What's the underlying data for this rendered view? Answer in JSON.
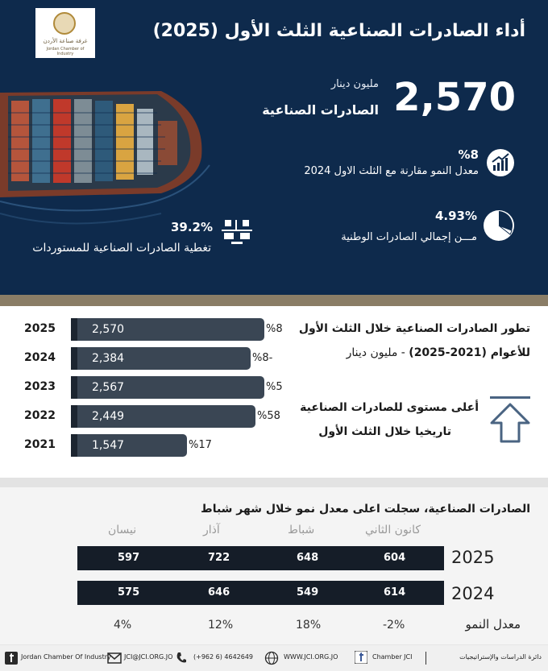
{
  "header": {
    "logo_text_ar": "غرفة صناعة الأردن",
    "logo_text_en": "Jordan Chamber of Industry",
    "title": "أداء الصادرات الصناعية الثلث الأول (2025)",
    "big_value": "2,570",
    "big_unit": "مليون دينار",
    "big_label": "الصادرات الصناعية",
    "growth_value": "%8",
    "growth_label": "معدل النمو مقارنة مع الثلث الاول 2024",
    "share_value": "93%.4",
    "share_label": "مـــن إجمالي الصادرات الوطنية",
    "coverage_value": "39.2%",
    "coverage_label": "تغطية الصادرات الصناعية للمستوردات"
  },
  "trend": {
    "title_line1": "تطور الصادرات الصناعية خلال الثلث الأول",
    "title_line2_bold": "للأعوام (2021-2025)",
    "title_line2_rest": " - مليون دينار",
    "note_line1": "أعلى مستوى للصادرات الصناعية",
    "note_line2": "تاريخيا خلال الثلث الأول"
  },
  "chart_data": {
    "type": "bar",
    "categories": [
      "2025",
      "2024",
      "2023",
      "2022",
      "2021"
    ],
    "values": [
      2570,
      2384,
      2567,
      2449,
      1547
    ],
    "value_labels": [
      "2,570",
      "2,384",
      "2,567",
      "2,449",
      "1,547"
    ],
    "growth_labels": [
      "%8",
      "%8-",
      "%5",
      "%58",
      "%17"
    ]
  },
  "monthly": {
    "title": "الصادرات الصناعية، سجلت اعلى معدل نمو خلال شهر شباط",
    "months": [
      "كانون الثاني",
      "شباط",
      "آذار",
      "نيسان"
    ],
    "rows": [
      {
        "year": "2025",
        "values": [
          "604",
          "648",
          "722",
          "597"
        ]
      },
      {
        "year": "2024",
        "values": [
          "614",
          "549",
          "646",
          "575"
        ]
      }
    ],
    "growth_label": "معدل النمو",
    "growth": [
      "-2%",
      "18%",
      "12%",
      "4%"
    ]
  },
  "footer": {
    "facebook": "Jordan Chamber Of Industry",
    "email": "JCI@JCI.ORG.JO",
    "phone": "(+962 6) 4642649",
    "website": "WWW.JCI.ORG.JO",
    "twitter": "Chamber JCI",
    "dept": "دائرة الدراسات والإستراتيجيات"
  }
}
